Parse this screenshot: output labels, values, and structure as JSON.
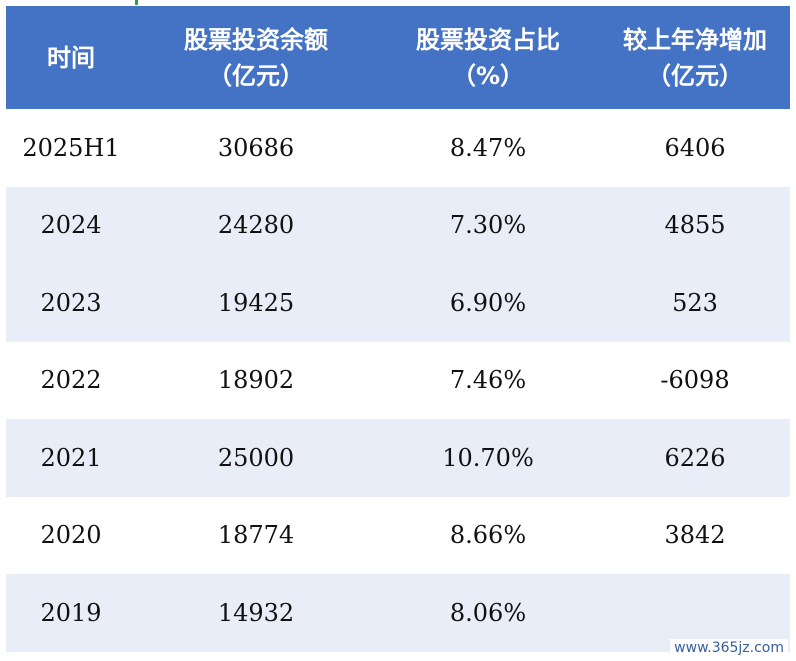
{
  "chart_data": {
    "type": "table",
    "columns": [
      "时间",
      "股票投资余额\n（亿元）",
      "股票投资占比\n（%）",
      "较上年净增加\n（亿元）"
    ],
    "rows": [
      [
        "2025H1",
        "30686",
        "8.47%",
        "6406"
      ],
      [
        "2024",
        "24280",
        "7.30%",
        "4855"
      ],
      [
        "2023",
        "19425",
        "6.90%",
        "523"
      ],
      [
        "2022",
        "18902",
        "7.46%",
        "-6098"
      ],
      [
        "2021",
        "25000",
        "10.70%",
        "6226"
      ],
      [
        "2020",
        "18774",
        "8.66%",
        "3842"
      ],
      [
        "2019",
        "14932",
        "8.06%",
        ""
      ]
    ]
  },
  "watermark": "www.365jz.com",
  "colors": {
    "header_bg": "#4472c4",
    "header_text": "#ffffff",
    "alt_row_bg": "#e9edf7",
    "row_bg": "#ffffff"
  }
}
